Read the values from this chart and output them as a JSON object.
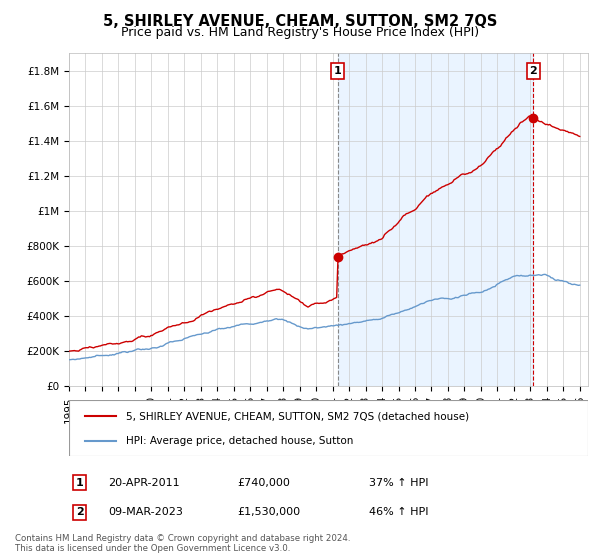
{
  "title": "5, SHIRLEY AVENUE, CHEAM, SUTTON, SM2 7QS",
  "subtitle": "Price paid vs. HM Land Registry's House Price Index (HPI)",
  "ylim": [
    0,
    1900000
  ],
  "yticks": [
    0,
    200000,
    400000,
    600000,
    800000,
    1000000,
    1200000,
    1400000,
    1600000,
    1800000
  ],
  "ytick_labels": [
    "£0",
    "£200K",
    "£400K",
    "£600K",
    "£800K",
    "£1M",
    "£1.2M",
    "£1.4M",
    "£1.6M",
    "£1.8M"
  ],
  "xlim_start": 1995.0,
  "xlim_end": 2026.5,
  "sale1_x": 2011.3,
  "sale1_y": 740000,
  "sale2_x": 2023.18,
  "sale2_y": 1530000,
  "red_line_color": "#cc0000",
  "blue_line_color": "#6699cc",
  "shade_color": "#ddeeff",
  "grid_color": "#cccccc",
  "background_color": "#ffffff",
  "legend_label_red": "5, SHIRLEY AVENUE, CHEAM, SUTTON, SM2 7QS (detached house)",
  "legend_label_blue": "HPI: Average price, detached house, Sutton",
  "transaction1_date": "20-APR-2011",
  "transaction1_price": "£740,000",
  "transaction1_hpi": "37% ↑ HPI",
  "transaction2_date": "09-MAR-2023",
  "transaction2_price": "£1,530,000",
  "transaction2_hpi": "46% ↑ HPI",
  "footnote": "Contains HM Land Registry data © Crown copyright and database right 2024.\nThis data is licensed under the Open Government Licence v3.0.",
  "title_fontsize": 10.5,
  "subtitle_fontsize": 9,
  "tick_fontsize": 7.5,
  "legend_fontsize": 7.5,
  "table_fontsize": 8
}
